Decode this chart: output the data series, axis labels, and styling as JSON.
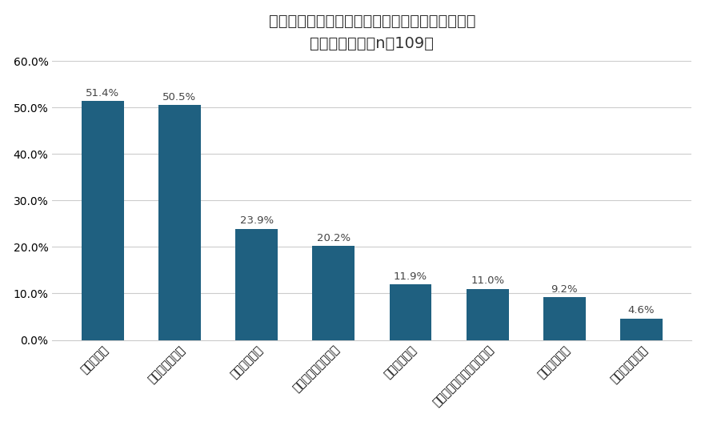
{
  "title_line1": "自宅のトイレの不満や後悔はどんなことですか？",
  "title_line2": "（複数選択可・n＝109）",
  "categories": [
    "掃除の手間",
    "臭いが気になる",
    "トレイの種類",
    "収納がない（狭い）",
    "トイレの場所",
    "窓や換気扇が付いていない",
    "音が気になる",
    "トイレが少ない"
  ],
  "values": [
    51.4,
    50.5,
    23.9,
    20.2,
    11.9,
    11.0,
    9.2,
    4.6
  ],
  "labels": [
    "51.4%",
    "50.5%",
    "23.9%",
    "20.2%",
    "11.9%",
    "11.0%",
    "9.2%",
    "4.6%"
  ],
  "bar_color": "#1f6080",
  "background_color": "#ffffff",
  "ylim": [
    0,
    60
  ],
  "yticks": [
    0,
    10,
    20,
    30,
    40,
    50,
    60
  ],
  "ytick_labels": [
    "0.0%",
    "10.0%",
    "20.0%",
    "30.0%",
    "40.0%",
    "50.0%",
    "60.0%"
  ],
  "title_fontsize": 14,
  "label_fontsize": 9.5,
  "tick_fontsize": 10,
  "bar_width": 0.55
}
